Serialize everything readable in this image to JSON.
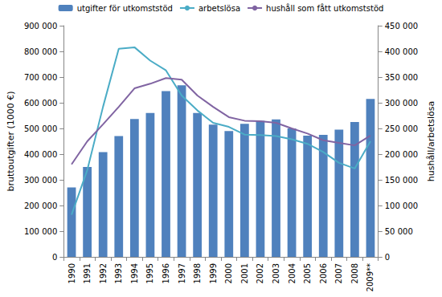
{
  "chart_data": {
    "type": "bar",
    "categories": [
      "1990",
      "1991",
      "1992",
      "1993",
      "1994",
      "1995",
      "1996",
      "1997",
      "1998",
      "1999",
      "2000",
      "2001",
      "2002",
      "2003",
      "2004",
      "2005",
      "2006",
      "2007",
      "2008",
      "2009**"
    ],
    "series": [
      {
        "name": "utgifter för utkomststöd",
        "type": "bar",
        "color": "#4f81bd",
        "values": [
          270000,
          350000,
          408000,
          470000,
          537000,
          560000,
          645000,
          668000,
          560000,
          515000,
          490000,
          518000,
          530000,
          535000,
          500000,
          472000,
          475000,
          495000,
          525000,
          615000
        ]
      },
      {
        "name": "arbetslösa",
        "type": "line",
        "axis": "y2",
        "color": "#4bacc6",
        "values": [
          82000,
          169000,
          292000,
          405000,
          408000,
          382000,
          363000,
          314000,
          285000,
          261000,
          253000,
          238000,
          237000,
          235000,
          229000,
          220000,
          204000,
          183000,
          172000,
          225000
        ]
      },
      {
        "name": "hushåll som fått utkomststöd",
        "type": "line",
        "axis": "y2",
        "color": "#8064a2",
        "values": [
          180000,
          225000,
          258000,
          292000,
          328000,
          337000,
          348000,
          345000,
          314000,
          292000,
          272000,
          265000,
          264000,
          261000,
          250000,
          240000,
          227000,
          222000,
          217000,
          236000
        ]
      }
    ],
    "ylabel": "bruttoutgifter (1000 €)",
    "y2label": "hushåll/arbetslösa",
    "ylim": [
      0,
      900000
    ],
    "yticks": [
      0,
      {
        "value": 100000,
        "label": "100 000"
      },
      {
        "value": 200000,
        "label": "200 000"
      },
      {
        "value": 300000,
        "label": "300 000"
      },
      {
        "value": 400000,
        "label": "400 000"
      },
      {
        "value": 500000,
        "label": "500 000"
      },
      {
        "value": 600000,
        "label": "600 000"
      },
      {
        "value": 700000,
        "label": "700 000"
      },
      {
        "value": 800000,
        "label": "800 000"
      },
      {
        "value": 900000,
        "label": "900 000"
      }
    ],
    "y2lim": [
      0,
      450000
    ],
    "y2ticks": [
      0,
      {
        "value": 50000,
        "label": "50 000"
      },
      {
        "value": 100000,
        "label": "100 000"
      },
      {
        "value": 150000,
        "label": "150 000"
      },
      {
        "value": 200000,
        "label": "200 000"
      },
      {
        "value": 250000,
        "label": "250 000"
      },
      {
        "value": 300000,
        "label": "300 000"
      },
      {
        "value": 350000,
        "label": "350 000"
      },
      {
        "value": 400000,
        "label": "400 000"
      },
      {
        "value": 450000,
        "label": "450 000"
      }
    ],
    "legend": "top",
    "grid": false
  }
}
